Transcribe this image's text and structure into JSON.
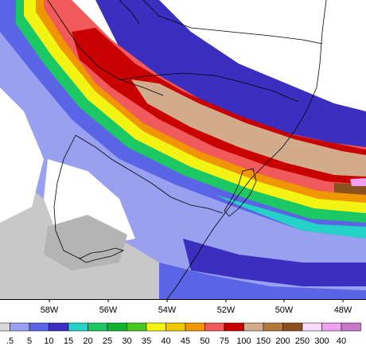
{
  "map": {
    "longitude_ticks": [
      "58W",
      "56W",
      "54W",
      "52W",
      "50W",
      "48W"
    ],
    "legend": {
      "levels": [
        ".5",
        "5",
        "10",
        "15",
        "20",
        "25",
        "30",
        "35",
        "40",
        "45",
        "50",
        "75",
        "100",
        "150",
        "200",
        "250",
        "300",
        "40"
      ],
      "colors": [
        "#d8d8d8",
        "#9aa0f0",
        "#5c64e6",
        "#3a2fbf",
        "#26d2c8",
        "#1cc864",
        "#10b432",
        "#46c81e",
        "#f4f414",
        "#f0c800",
        "#f09600",
        "#f05a5a",
        "#c80000",
        "#d2aa8c",
        "#b4783c",
        "#8c501e",
        "#fadcfa",
        "#f0a0f0",
        "#c878c8"
      ]
    }
  }
}
